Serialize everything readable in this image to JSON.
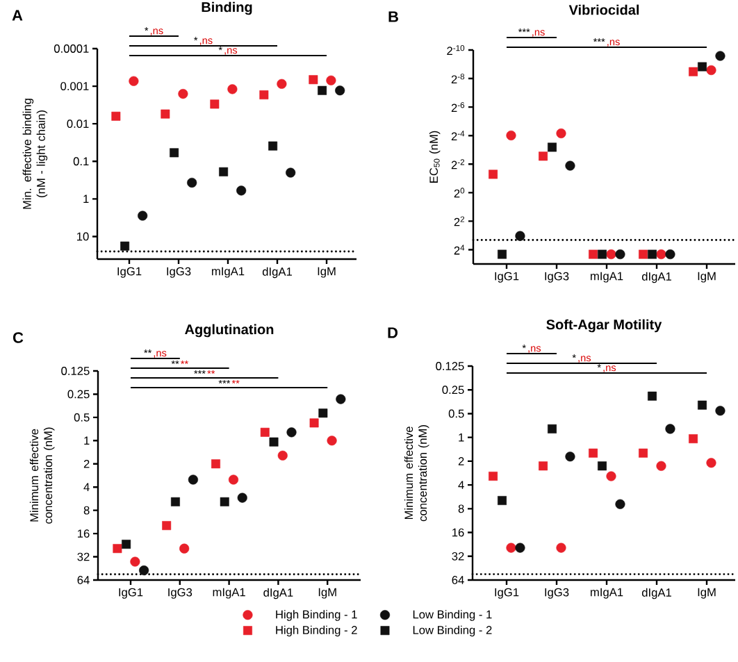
{
  "chart_data": [
    {
      "type": "scatter",
      "title": "Binding",
      "ylabel": "Min. effective binding (nM - light chain)",
      "categories": [
        "IgG1",
        "IgG3",
        "mIgA1",
        "dIgA1",
        "IgM"
      ],
      "log": "y",
      "ylim": [
        40,
        0.0001
      ],
      "yticks": [
        0.0001,
        0.001,
        0.01,
        0.1,
        1,
        10
      ],
      "series": [
        {
          "color": "#e8202a",
          "marker": "circle",
          "values": [
            0.00073,
            0.0016,
            0.0012,
            0.00087,
            0.0007
          ]
        },
        {
          "color": "#e8202a",
          "marker": "square",
          "values": [
            0.0063,
            0.0055,
            0.003,
            0.0017,
            0.00067
          ]
        },
        {
          "color": "#111111",
          "marker": "circle",
          "values": [
            2.8,
            0.37,
            0.6,
            0.2,
            0.0013
          ]
        },
        {
          "color": "#111111",
          "marker": "square",
          "values": [
            18,
            0.059,
            0.19,
            0.039,
            0.0013
          ]
        }
      ],
      "ref_lines": [
        {
          "axis": "y",
          "value": 25,
          "line_style": "dotted"
        }
      ],
      "annotations": [
        "A",
        "*",
        ",ns",
        "*",
        ",ns",
        "*",
        ",ns"
      ]
    },
    {
      "type": "scatter",
      "title": "Vibriocidal",
      "ylabel": "EC$_{50}$ (nM)",
      "categories": [
        "IgG1",
        "IgG3",
        "mIgA1",
        "dIgA1",
        "IgM"
      ],
      "log": "y",
      "ylim": [
        32,
        0.0009765625
      ],
      "yticks": [
        {
          "value": 0.0009765625,
          "label": "2$^{-10}$"
        },
        {
          "value": 0.00390625,
          "label": "2$^{-8}$"
        },
        {
          "value": 0.015625,
          "label": "2$^{-6}$"
        },
        {
          "value": 0.0625,
          "label": "2$^{-4}$"
        },
        {
          "value": 0.25,
          "label": "2$^{-2}$"
        },
        {
          "value": 1,
          "label": "2$^{0}$"
        },
        {
          "value": 4,
          "label": "2$^{2}$"
        },
        {
          "value": 16,
          "label": "2$^{4}$"
        }
      ],
      "series": [
        {
          "color": "#e8202a",
          "marker": "circle",
          "values": [
            0.062,
            0.056,
            20,
            20,
            0.0026
          ]
        },
        {
          "color": "#e8202a",
          "marker": "square",
          "values": [
            0.41,
            0.17,
            20,
            20,
            0.0028
          ]
        },
        {
          "color": "#111111",
          "marker": "circle",
          "values": [
            8.2,
            0.27,
            20,
            20,
            0.0013
          ]
        },
        {
          "color": "#111111",
          "marker": "square",
          "values": [
            20,
            0.11,
            20,
            20,
            0.0022
          ]
        }
      ],
      "ref_lines": [
        {
          "axis": "y",
          "value": 10,
          "line_style": "dotted"
        }
      ],
      "annotations": [
        "B",
        "***",
        ",ns",
        "***",
        ",ns"
      ]
    },
    {
      "type": "scatter",
      "title": "Agglutination",
      "ylabel": "Minimum effective concentration (nM)",
      "categories": [
        "IgG1",
        "IgG3",
        "mIgA1",
        "dIgA1",
        "IgM"
      ],
      "log": "y",
      "ylim": [
        64,
        0.125
      ],
      "yticks": [
        0.125,
        0.25,
        0.5,
        1,
        2,
        4,
        8,
        16,
        32,
        64
      ],
      "legend": "bottom",
      "series": [
        {
          "name": "High Binding - 1",
          "color": "#e8202a",
          "marker": "circle",
          "values": [
            37,
            25,
            3.2,
            1.56,
            1.0
          ]
        },
        {
          "name": "High Binding - 2",
          "color": "#e8202a",
          "marker": "square",
          "values": [
            25,
            12.6,
            2.0,
            0.78,
            0.59
          ]
        },
        {
          "name": "Low Binding - 1",
          "color": "#111111",
          "marker": "circle",
          "values": [
            48,
            3.2,
            5.5,
            0.78,
            0.29
          ]
        },
        {
          "name": "Low Binding - 2",
          "color": "#111111",
          "marker": "square",
          "values": [
            22,
            6.2,
            6.2,
            1.04,
            0.44
          ]
        }
      ],
      "ref_lines": [
        {
          "axis": "y",
          "value": 54,
          "line_style": "dotted"
        }
      ],
      "annotations": [
        "C",
        "**",
        ",ns",
        "**",
        "**",
        "***",
        "**",
        "***",
        "**"
      ]
    },
    {
      "type": "scatter",
      "title": "Soft-Agar Motility",
      "ylabel": "Minimum effective concentration (nM)",
      "categories": [
        "IgG1",
        "IgG3",
        "mIgA1",
        "dIgA1",
        "IgM"
      ],
      "log": "y",
      "ylim": [
        64,
        0.125
      ],
      "yticks": [
        0.125,
        0.25,
        0.5,
        1,
        2,
        4,
        8,
        16,
        32,
        64
      ],
      "series": [
        {
          "color": "#e8202a",
          "marker": "circle",
          "values": [
            25,
            25,
            3.1,
            2.3,
            2.1
          ]
        },
        {
          "color": "#e8202a",
          "marker": "square",
          "values": [
            3.1,
            2.3,
            1.58,
            1.58,
            1.04
          ]
        },
        {
          "color": "#111111",
          "marker": "circle",
          "values": [
            25,
            1.75,
            7.0,
            0.78,
            0.46
          ]
        },
        {
          "color": "#111111",
          "marker": "square",
          "values": [
            6.3,
            0.78,
            2.3,
            0.3,
            0.39
          ]
        }
      ],
      "ref_lines": [
        {
          "axis": "y",
          "value": 54,
          "line_style": "dotted"
        }
      ],
      "annotations": [
        "D",
        "*",
        ",ns",
        "*",
        ",ns",
        "*",
        ",ns"
      ]
    }
  ]
}
